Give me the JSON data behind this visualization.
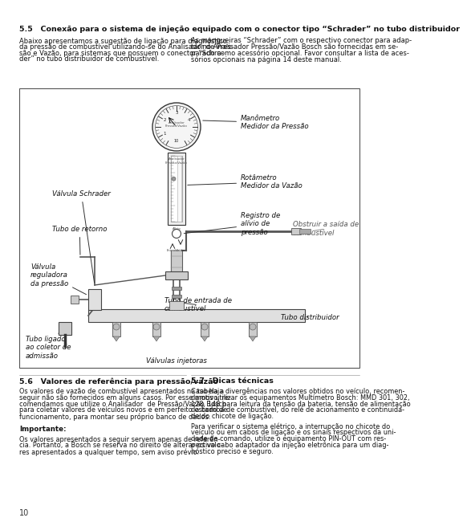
{
  "bg_color": "#ffffff",
  "page_num": "10",
  "section_55_title": "5.5   Conexão para o sistema de injeção equipado com o conector tipo “Schrader” no tubo distribuidor",
  "section_55_left_lines": [
    "Abaixo apresentamos a sugestão de ligação para diagnóstico",
    "da pressão de combustível utilizando-se do Analisador de Pres-",
    "são e Vazão, para sistemas que possuem o conector “Schra-",
    "der” no tubo distribuidor de combustível."
  ],
  "section_55_right_lines": [
    "As mangueiras “Schrader” com o respectivo conector para adap-",
    "tar no Analisador Pressão/Vazão Bosch são fornecidas em se-",
    "parado como acessório opcional. Favor consultar a lista de aces-",
    "sórios opcionais na página 14 deste manual."
  ],
  "section_56_title": "5.6   Valores de referência para pressão/vazão",
  "section_56_lines": [
    "Os valores de vazão de combustível apresentados na tabela a",
    "seguir não são fornecidos em alguns casos. Por esse motivo, re-",
    "comendamos que utilize o Analisador  de Pressão/Vazão Bosch",
    "para coletar valores de veículos novos e em perfeito estado de",
    "funcionamento, para montar seu próprio banco de dados.",
    "",
    "",
    "Importante:",
    "",
    "Os valores apresentados a seguir servem apenas de referên-",
    "cia. Portanto, a Bosch se reserva no direito de alterar os valo-",
    "res apresentados a qualquer tempo, sem aviso prévio."
  ],
  "section_57_title": "5.7   Dicas técnicas",
  "section_57_lines": [
    "Caso haja divergências nos valores obtidos no veículo, recomen-",
    "damos utilizar os equipamentos Multímetro Bosch: MMD 301, 302,",
    "128, 148 para leitura da tensão da bateria, tensão de alimentação",
    "da bomba de combustível, do relé de acionamento e continuida-",
    "de do chicote de ligação.",
    "",
    "Para verificar o sistema elétrico, a interrupção no chicote do",
    "veículo ou em cabos de ligação e os sinais respectivos da uni-",
    "dade de comando, utilize o equipamento PIN-OUT com res-",
    "pectivo cabo adaptador da injeção eletrônica para um diag-",
    "nóstico preciso e seguro."
  ],
  "lbl_manometro": "Manômetro\nMedidor da Pressão",
  "lbl_rotametro": "Rotâmetro\nMedidor da Vazão",
  "lbl_registro": "Registro de\nalívio de\npressão",
  "lbl_obstruir": "Obstruir a saída de\ncombustível",
  "lbl_schrader": "Válvula Schrader",
  "lbl_retorno": "Tubo de retorno",
  "lbl_reguladora": "Válvula\nreguladora\nda pressão",
  "lbl_entrada": "Tubo de entrada de\ncombustível",
  "lbl_distribuidor": "Tubo distribuidor",
  "lbl_coletor": "Tubo ligado\nao coletor de\nadmissão",
  "lbl_injetoras": "Válvulas injetoras"
}
